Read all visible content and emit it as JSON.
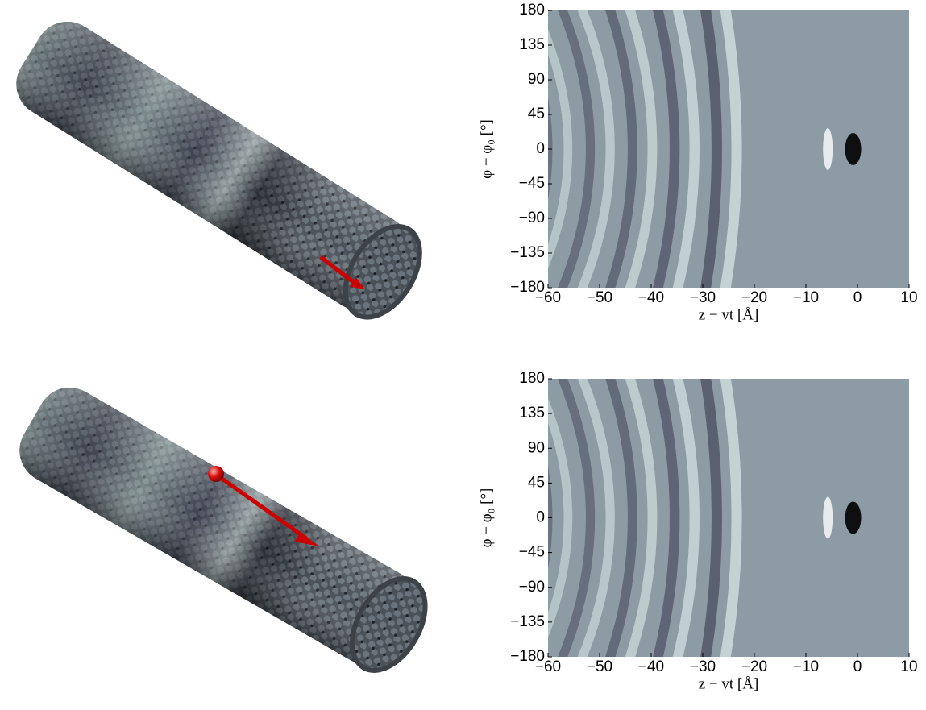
{
  "chart_data": [
    {
      "type": "heatmap",
      "xlabel": "z − vt [Å]",
      "ylabel": "φ − φ₀ [°]",
      "xlim": [
        -60,
        10
      ],
      "ylim": [
        -180,
        180
      ],
      "xticks": [
        {
          "value": -60,
          "label": "−60"
        },
        {
          "value": -50,
          "label": "−50"
        },
        {
          "value": -40,
          "label": "−40"
        },
        {
          "value": -30,
          "label": "−30"
        },
        {
          "value": -20,
          "label": "−20"
        },
        {
          "value": -10,
          "label": "−10"
        },
        0,
        10
      ],
      "yticks": [
        {
          "value": -180,
          "label": "−180"
        },
        {
          "value": -135,
          "label": "−135"
        },
        {
          "value": -90,
          "label": "−90"
        },
        {
          "value": -45,
          "label": "−45"
        },
        0,
        45,
        90,
        135,
        180
      ]
    },
    {
      "type": "heatmap",
      "xlabel": "z − vt [Å]",
      "ylabel": "φ − φ₀ [°]",
      "xlim": [
        -60,
        10
      ],
      "ylim": [
        -180,
        180
      ],
      "xticks": [
        {
          "value": -60,
          "label": "−60"
        },
        {
          "value": -50,
          "label": "−50"
        },
        {
          "value": -40,
          "label": "−40"
        },
        {
          "value": -30,
          "label": "−30"
        },
        {
          "value": -20,
          "label": "−20"
        },
        {
          "value": -10,
          "label": "−10"
        },
        0,
        10
      ],
      "yticks": [
        {
          "value": -180,
          "label": "−180"
        },
        {
          "value": -135,
          "label": "−135"
        },
        {
          "value": -90,
          "label": "−90"
        },
        {
          "value": -45,
          "label": "−45"
        },
        0,
        45,
        90,
        135,
        180
      ]
    }
  ]
}
